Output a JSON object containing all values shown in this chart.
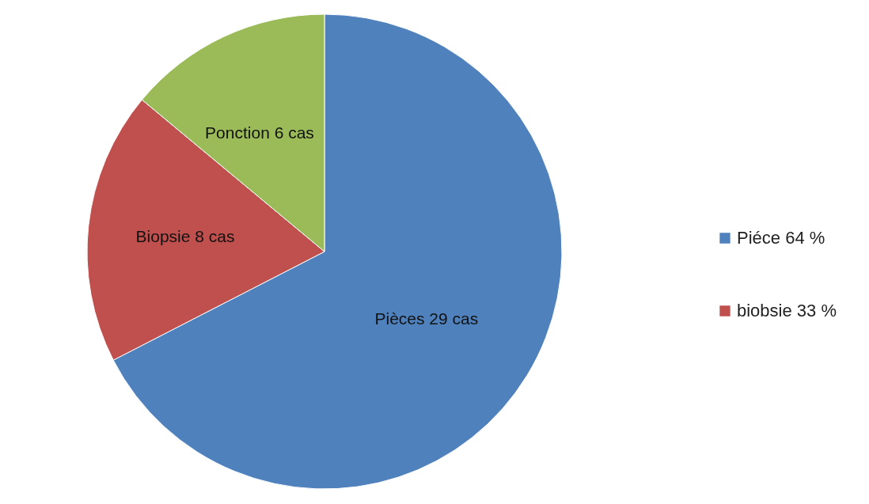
{
  "chart_data": {
    "type": "pie",
    "categories": [
      "Piéce 64 %",
      "biobsie 33 %",
      null
    ],
    "values": [
      29,
      8,
      6
    ],
    "colors": [
      "#4f81bd",
      "#c0504d",
      "#9bbb59"
    ],
    "value_labels": [
      "Pièces 29 cas",
      "Biopsie 8 cas",
      "Ponction 6 cas"
    ],
    "legend": "right"
  }
}
